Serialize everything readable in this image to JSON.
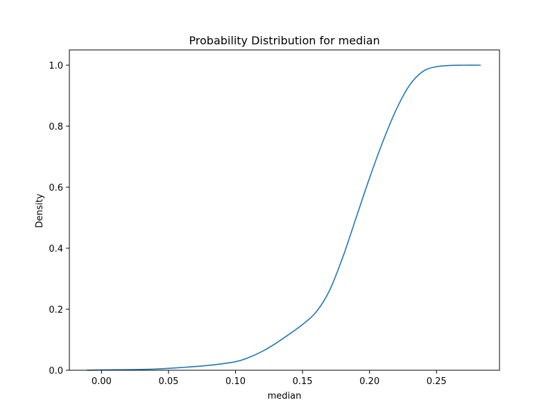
{
  "chart_data": {
    "type": "line",
    "title": "Probability Distribution for median",
    "xlabel": "median",
    "ylabel": "Density",
    "xlim": [
      -0.024,
      0.297
    ],
    "ylim": [
      0.0,
      1.05
    ],
    "xticks": [
      {
        "value": 0.0,
        "label": "0.00"
      },
      {
        "value": 0.05,
        "label": "0.05"
      },
      {
        "value": 0.1,
        "label": "0.10"
      },
      {
        "value": 0.15,
        "label": "0.15"
      },
      {
        "value": 0.2,
        "label": "0.20"
      },
      {
        "value": 0.25,
        "label": "0.25"
      }
    ],
    "yticks": [
      {
        "value": 0.0,
        "label": "0.0"
      },
      {
        "value": 0.2,
        "label": "0.2"
      },
      {
        "value": 0.4,
        "label": "0.4"
      },
      {
        "value": 0.6,
        "label": "0.6"
      },
      {
        "value": 0.8,
        "label": "0.8"
      },
      {
        "value": 1.0,
        "label": "1.0"
      }
    ],
    "grid": false,
    "series": [
      {
        "color": "#1f77b4",
        "x": [
          -0.011,
          0.0,
          0.02,
          0.04,
          0.06,
          0.08,
          0.1,
          0.11,
          0.12,
          0.13,
          0.14,
          0.15,
          0.16,
          0.17,
          0.18,
          0.19,
          0.2,
          0.21,
          0.22,
          0.23,
          0.24,
          0.25,
          0.26,
          0.27,
          0.283
        ],
        "y": [
          0.0,
          0.001,
          0.002,
          0.004,
          0.009,
          0.016,
          0.028,
          0.042,
          0.062,
          0.088,
          0.118,
          0.15,
          0.19,
          0.26,
          0.37,
          0.5,
          0.63,
          0.75,
          0.855,
          0.935,
          0.98,
          0.995,
          0.999,
          1.0,
          1.0
        ]
      }
    ]
  }
}
